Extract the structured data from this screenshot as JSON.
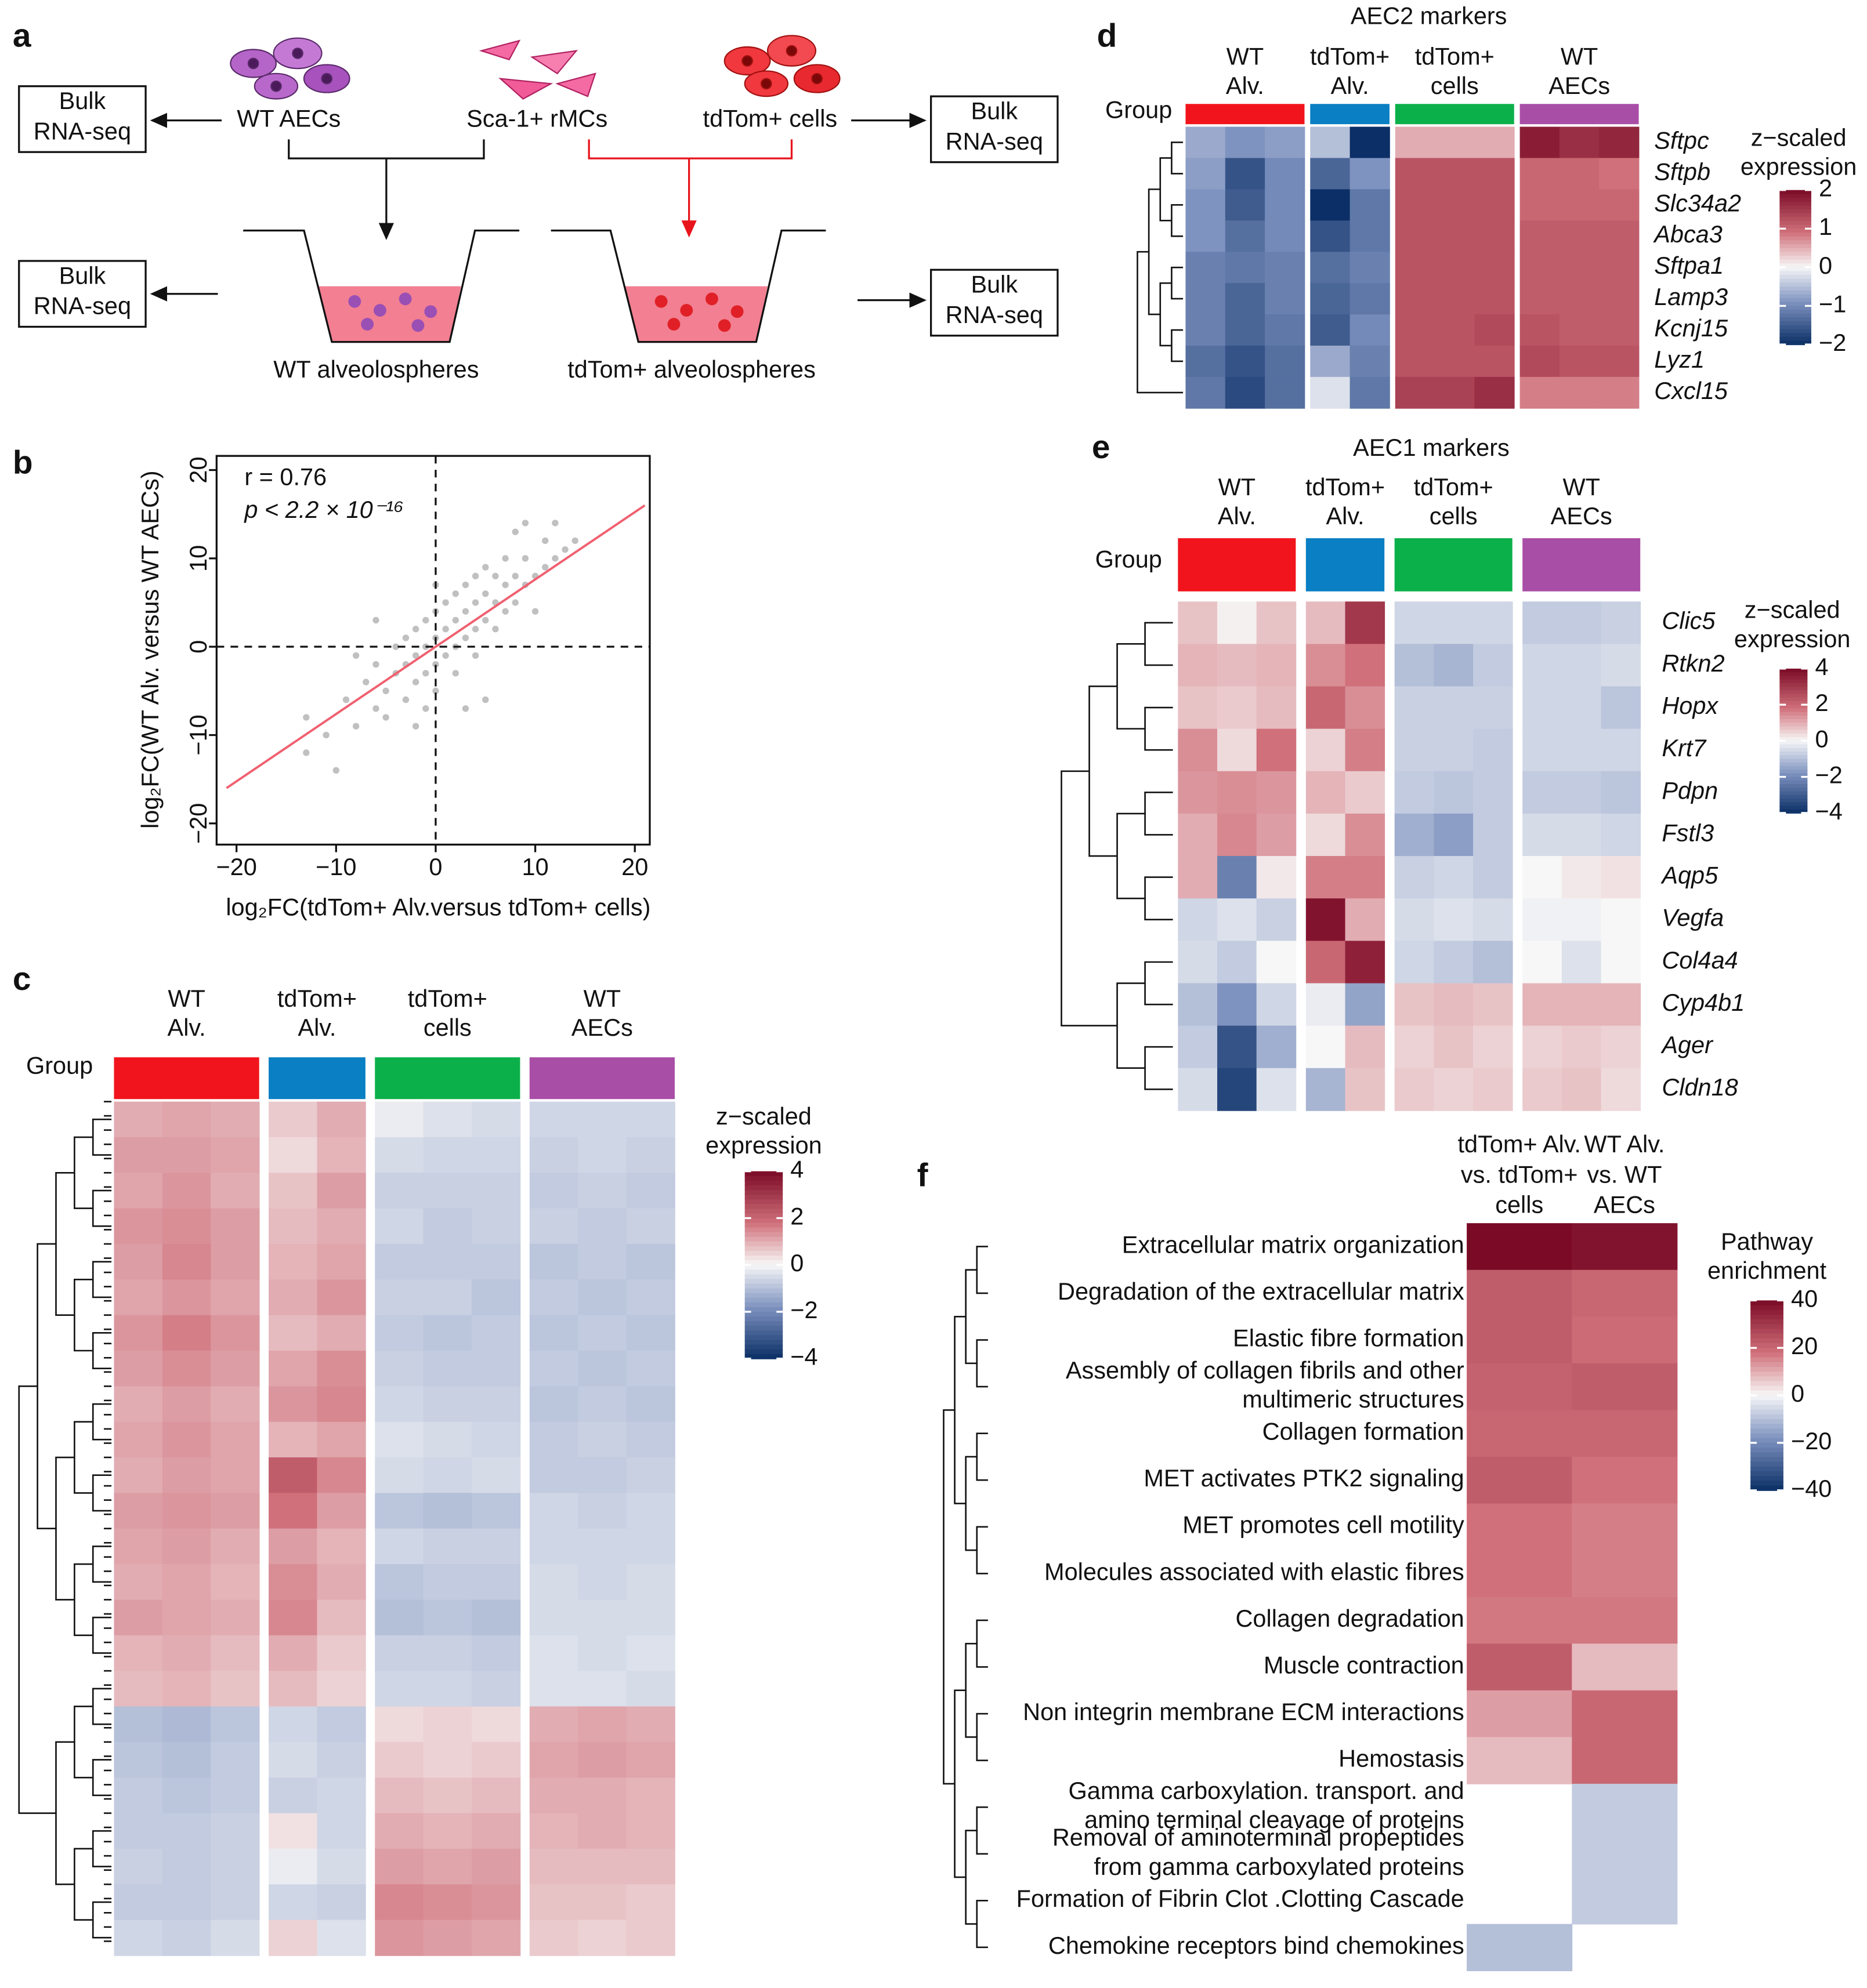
{
  "panel_labels": [
    "a",
    "b",
    "c",
    "d",
    "e",
    "f"
  ],
  "schematic": {
    "cells": [
      "WT AECs",
      "Sca-1+ rMCs",
      "tdTom+ cells"
    ],
    "bulk_boxes": [
      [
        "Bulk",
        "RNA-seq"
      ],
      [
        "Bulk",
        "RNA-seq"
      ],
      [
        "Bulk",
        "RNA-seq"
      ],
      [
        "Bulk",
        "RNA-seq"
      ]
    ],
    "wells": [
      "WT alveolospheres",
      "tdTom+ alveolospheres"
    ]
  },
  "chart_data": [
    {
      "type": "scatter",
      "annotations": [
        "r = 0.76",
        "p < 2.2 × 10⁻¹⁶"
      ],
      "xlabel": "log₂FC(tdTom+ Alv.versus tdTom+ cells)",
      "ylabel": "log₂FC(WT Alv. versus WT AECs)",
      "xlim": [
        -22,
        21.5
      ],
      "ylim": [
        -22.4,
        21.6
      ],
      "xticks": [
        {
          "value": -20,
          "label": "−20"
        },
        {
          "value": -10,
          "label": "−10"
        },
        0,
        10,
        20
      ],
      "yticks": [
        {
          "value": -20,
          "label": "−20"
        },
        {
          "value": -10,
          "label": "−10"
        },
        0,
        10,
        20
      ],
      "color": "#c0c0c0",
      "fit_color": "#f06070",
      "ref_lines": {
        "x": 0,
        "y": 0
      },
      "fit": {
        "x": [
          -21,
          21
        ],
        "y": [
          -16,
          16
        ]
      },
      "x": [
        -13,
        -11,
        -9,
        -8,
        -7,
        -6,
        -6,
        -5,
        -5,
        -4,
        -4,
        -3,
        -3,
        -3,
        -2,
        -2,
        -2,
        -1,
        -1,
        -1,
        0,
        0,
        0,
        0,
        1,
        1,
        1,
        2,
        2,
        2,
        2,
        3,
        3,
        3,
        4,
        4,
        4,
        4,
        5,
        5,
        5,
        6,
        6,
        6,
        7,
        7,
        7,
        8,
        8,
        9,
        9,
        10,
        11,
        11,
        12,
        13,
        14,
        -8,
        -10,
        -13,
        5,
        8,
        -2,
        3,
        10,
        -6,
        9,
        12,
        0,
        -1
      ],
      "y": [
        -12,
        -10,
        -6,
        -9,
        -4,
        -7,
        -2,
        -5,
        -8,
        -3,
        0,
        -6,
        -2,
        1,
        -4,
        -1,
        2,
        -3,
        0,
        3,
        -5,
        -2,
        1,
        4,
        -1,
        2,
        5,
        -3,
        0,
        3,
        6,
        1,
        4,
        7,
        -1,
        2,
        5,
        8,
        3,
        6,
        9,
        2,
        5,
        8,
        4,
        7,
        10,
        5,
        8,
        7,
        10,
        8,
        9,
        12,
        10,
        11,
        12,
        -1,
        -14,
        -8,
        -6,
        13,
        -9,
        -7,
        4,
        3,
        14,
        14,
        7,
        -7
      ]
    },
    {
      "type": "heatmap",
      "group_label": "Group",
      "legend_title": [
        "z−scaled",
        "expression"
      ],
      "clim": [
        -4,
        4
      ],
      "cticks": [
        {
          "value": -4,
          "label": "−4"
        },
        {
          "value": -2,
          "label": "−2"
        },
        0,
        2,
        4
      ],
      "groups": [
        {
          "label": [
            "WT",
            "Alv."
          ],
          "color": "#f2141c",
          "columns": 3
        },
        {
          "label": [
            "tdTom+",
            "Alv."
          ],
          "color": "#0a7fc3",
          "columns": 2
        },
        {
          "label": [
            "tdTom+",
            "cells"
          ],
          "color": "#0cb04a",
          "columns": 3
        },
        {
          "label": [
            "WT",
            "AECs"
          ],
          "color": "#a94ea6",
          "columns": 3
        }
      ],
      "values": [
        [
          1.0,
          1.1,
          1.0,
          0.6,
          1.0,
          -0.2,
          -0.4,
          -0.5,
          -0.6,
          -0.6,
          -0.6
        ],
        [
          1.2,
          1.2,
          1.1,
          0.4,
          0.9,
          -0.5,
          -0.6,
          -0.6,
          -0.7,
          -0.6,
          -0.7
        ],
        [
          1.1,
          1.3,
          1.0,
          0.7,
          1.2,
          -0.7,
          -0.7,
          -0.7,
          -0.8,
          -0.7,
          -0.8
        ],
        [
          1.3,
          1.4,
          1.2,
          0.8,
          1.0,
          -0.6,
          -0.8,
          -0.7,
          -0.7,
          -0.8,
          -0.7
        ],
        [
          1.2,
          1.5,
          1.2,
          0.9,
          1.1,
          -0.8,
          -0.8,
          -0.8,
          -0.9,
          -0.8,
          -0.9
        ],
        [
          1.1,
          1.3,
          1.1,
          1.0,
          1.3,
          -0.7,
          -0.7,
          -0.9,
          -0.8,
          -0.9,
          -0.8
        ],
        [
          1.3,
          1.6,
          1.3,
          0.8,
          1.0,
          -0.8,
          -0.9,
          -0.8,
          -0.9,
          -0.8,
          -0.9
        ],
        [
          1.2,
          1.4,
          1.2,
          1.1,
          1.4,
          -0.7,
          -0.8,
          -0.8,
          -0.8,
          -0.9,
          -0.8
        ],
        [
          1.0,
          1.2,
          1.0,
          1.3,
          1.5,
          -0.6,
          -0.7,
          -0.7,
          -0.9,
          -0.8,
          -0.9
        ],
        [
          1.1,
          1.3,
          1.1,
          0.9,
          1.1,
          -0.4,
          -0.5,
          -0.6,
          -0.8,
          -0.7,
          -0.8
        ],
        [
          1.0,
          1.2,
          1.1,
          2.2,
          1.5,
          -0.5,
          -0.6,
          -0.5,
          -0.8,
          -0.8,
          -0.7
        ],
        [
          1.2,
          1.3,
          1.2,
          1.8,
          1.2,
          -0.9,
          -1.0,
          -0.9,
          -0.6,
          -0.7,
          -0.6
        ],
        [
          1.1,
          1.2,
          1.0,
          1.2,
          0.9,
          -0.6,
          -0.7,
          -0.7,
          -0.6,
          -0.6,
          -0.6
        ],
        [
          1.0,
          1.1,
          0.9,
          1.4,
          1.0,
          -0.9,
          -0.8,
          -0.8,
          -0.5,
          -0.6,
          -0.5
        ],
        [
          1.2,
          1.1,
          1.0,
          1.5,
          0.8,
          -1.0,
          -0.9,
          -1.0,
          -0.5,
          -0.5,
          -0.5
        ],
        [
          0.9,
          1.0,
          0.8,
          1.0,
          0.6,
          -0.7,
          -0.7,
          -0.8,
          -0.4,
          -0.5,
          -0.4
        ],
        [
          0.8,
          0.9,
          0.7,
          0.8,
          0.5,
          -0.6,
          -0.6,
          -0.7,
          -0.4,
          -0.4,
          -0.5
        ],
        [
          -1.0,
          -1.1,
          -0.9,
          -0.6,
          -0.8,
          0.4,
          0.5,
          0.4,
          1.0,
          1.1,
          1.0
        ],
        [
          -0.9,
          -1.0,
          -0.8,
          -0.5,
          -0.7,
          0.6,
          0.5,
          0.6,
          1.1,
          1.2,
          1.1
        ],
        [
          -0.8,
          -0.9,
          -0.8,
          -0.7,
          -0.6,
          0.8,
          0.7,
          0.8,
          1.0,
          1.0,
          0.9
        ],
        [
          -0.8,
          -0.8,
          -0.7,
          0.3,
          -0.6,
          1.0,
          0.9,
          1.0,
          0.9,
          1.0,
          0.9
        ],
        [
          -0.7,
          -0.8,
          -0.7,
          -0.2,
          -0.5,
          1.2,
          1.1,
          1.2,
          0.8,
          0.8,
          0.8
        ],
        [
          -0.8,
          -0.8,
          -0.7,
          -0.6,
          -0.7,
          1.5,
          1.4,
          1.3,
          0.7,
          0.7,
          0.6
        ],
        [
          -0.6,
          -0.7,
          -0.5,
          0.5,
          -0.4,
          1.3,
          1.2,
          1.1,
          0.6,
          0.5,
          0.6
        ]
      ]
    },
    {
      "type": "heatmap",
      "title": "AEC2 markers",
      "group_label": "Group",
      "legend_title": [
        "z−scaled",
        "expression"
      ],
      "clim": [
        -2,
        2
      ],
      "cticks": [
        {
          "value": -2,
          "label": "−2"
        },
        {
          "value": -1,
          "label": "−1"
        },
        0,
        1,
        2
      ],
      "groups": [
        {
          "label": [
            "WT",
            "Alv."
          ],
          "color": "#f2141c",
          "columns": 3
        },
        {
          "label": [
            "tdTom+",
            "Alv."
          ],
          "color": "#0a7fc3",
          "columns": 2
        },
        {
          "label": [
            "tdTom+",
            "cells"
          ],
          "color": "#0cb04a",
          "columns": 3
        },
        {
          "label": [
            "WT",
            "AECs"
          ],
          "color": "#a94ea6",
          "columns": 3
        }
      ],
      "row_labels": [
        "Sftpc",
        "Sftpb",
        "Slc34a2",
        "Abca3",
        "Sftpa1",
        "Lamp3",
        "Kcnj15",
        "Lyz1",
        "Cxcl15"
      ],
      "values": [
        [
          -0.7,
          -0.9,
          -0.8,
          -0.5,
          -2.0,
          0.5,
          0.5,
          0.5,
          1.8,
          1.6,
          1.7
        ],
        [
          -0.8,
          -1.6,
          -1.0,
          -1.4,
          -0.9,
          1.2,
          1.2,
          1.2,
          1.0,
          1.0,
          0.9
        ],
        [
          -0.9,
          -1.5,
          -1.0,
          -2.0,
          -1.2,
          1.2,
          1.2,
          1.2,
          1.0,
          1.0,
          1.0
        ],
        [
          -0.9,
          -1.3,
          -1.0,
          -1.6,
          -1.2,
          1.2,
          1.2,
          1.2,
          1.1,
          1.1,
          1.1
        ],
        [
          -1.1,
          -1.2,
          -1.1,
          -1.3,
          -1.1,
          1.2,
          1.2,
          1.2,
          1.1,
          1.1,
          1.1
        ],
        [
          -1.1,
          -1.4,
          -1.1,
          -1.4,
          -1.2,
          1.2,
          1.2,
          1.2,
          1.1,
          1.1,
          1.1
        ],
        [
          -1.1,
          -1.4,
          -1.2,
          -1.5,
          -1.0,
          1.2,
          1.2,
          1.3,
          1.2,
          1.1,
          1.1
        ],
        [
          -1.3,
          -1.6,
          -1.3,
          -0.7,
          -1.1,
          1.2,
          1.2,
          1.2,
          1.3,
          1.2,
          1.2
        ],
        [
          -1.2,
          -1.7,
          -1.3,
          -0.2,
          -1.2,
          1.4,
          1.4,
          1.6,
          0.8,
          0.8,
          0.8
        ]
      ]
    },
    {
      "type": "heatmap",
      "title": "AEC1 markers",
      "group_label": "Group",
      "legend_title": [
        "z−scaled",
        "expression"
      ],
      "clim": [
        -4,
        4
      ],
      "cticks": [
        {
          "value": -4,
          "label": "−4"
        },
        {
          "value": -2,
          "label": "−2"
        },
        0,
        2,
        4
      ],
      "groups": [
        {
          "label": [
            "WT",
            "Alv."
          ],
          "color": "#f2141c",
          "columns": 3
        },
        {
          "label": [
            "tdTom+",
            "Alv."
          ],
          "color": "#0a7fc3",
          "columns": 2
        },
        {
          "label": [
            "tdTom+",
            "cells"
          ],
          "color": "#0cb04a",
          "columns": 3
        },
        {
          "label": [
            "WT",
            "AECs"
          ],
          "color": "#a94ea6",
          "columns": 3
        }
      ],
      "row_labels": [
        "Clic5",
        "Rtkn2",
        "Hopx",
        "Krt7",
        "Pdpn",
        "Fstl3",
        "Aqp5",
        "Vegfa",
        "Col4a4",
        "Cyp4b1",
        "Ager",
        "Cldn18"
      ],
      "values": [
        [
          0.7,
          0.1,
          0.7,
          0.8,
          3.0,
          -0.6,
          -0.6,
          -0.6,
          -0.8,
          -0.8,
          -0.7
        ],
        [
          0.9,
          0.8,
          0.9,
          1.4,
          1.8,
          -1.0,
          -1.2,
          -0.8,
          -0.6,
          -0.6,
          -0.5
        ],
        [
          0.7,
          0.6,
          0.8,
          2.0,
          1.4,
          -0.7,
          -0.7,
          -0.7,
          -0.6,
          -0.6,
          -0.9
        ],
        [
          1.4,
          0.4,
          1.8,
          0.5,
          1.6,
          -0.7,
          -0.7,
          -0.8,
          -0.6,
          -0.6,
          -0.6
        ],
        [
          1.3,
          1.4,
          1.3,
          0.9,
          0.6,
          -0.8,
          -0.9,
          -0.8,
          -0.8,
          -0.8,
          -0.9
        ],
        [
          1.0,
          1.5,
          1.2,
          0.4,
          1.4,
          -1.3,
          -1.6,
          -0.8,
          -0.5,
          -0.5,
          -0.6
        ],
        [
          1.0,
          -2.2,
          0.2,
          1.6,
          1.6,
          -0.7,
          -0.6,
          -0.8,
          0.0,
          0.2,
          0.3
        ],
        [
          -0.6,
          -0.4,
          -0.7,
          3.8,
          1.0,
          -0.5,
          -0.4,
          -0.5,
          -0.1,
          -0.1,
          0.0
        ],
        [
          -0.5,
          -0.8,
          0.0,
          2.0,
          3.5,
          -0.6,
          -0.8,
          -1.0,
          0.0,
          -0.4,
          0.0
        ],
        [
          -1.0,
          -1.8,
          -0.6,
          -0.2,
          -1.5,
          0.7,
          0.8,
          0.7,
          0.9,
          0.9,
          0.9
        ],
        [
          -0.8,
          -3.2,
          -1.3,
          0.0,
          0.8,
          0.5,
          0.7,
          0.5,
          0.5,
          0.6,
          0.5
        ],
        [
          -0.5,
          -3.5,
          -0.4,
          -1.2,
          0.7,
          0.6,
          0.5,
          0.6,
          0.6,
          0.7,
          0.4
        ]
      ]
    },
    {
      "type": "heatmap",
      "legend_title": [
        "Pathway",
        "enrichment"
      ],
      "clim": [
        -40,
        40
      ],
      "cticks": [
        {
          "value": -40,
          "label": "−40"
        },
        {
          "value": -20,
          "label": "−20"
        },
        0,
        20,
        40
      ],
      "column_labels": [
        [
          "tdTom+ Alv.",
          "vs. tdTom+",
          "cells"
        ],
        [
          "WT Alv.",
          "vs. WT",
          "AECs"
        ]
      ],
      "row_labels": [
        [
          "Extracellular matrix organization"
        ],
        [
          "Degradation of the extracellular matrix"
        ],
        [
          "Elastic fibre formation"
        ],
        [
          "Assembly of collagen fibrils and other",
          "multimeric structures"
        ],
        [
          "Collagen formation"
        ],
        [
          "MET activates PTK2 signaling"
        ],
        [
          "MET promotes cell motility"
        ],
        [
          "Molecules associated with elastic fibres"
        ],
        [
          "Collagen degradation"
        ],
        [
          "Muscle contraction"
        ],
        [
          "Non integrin membrane ECM interactions"
        ],
        [
          "Hemostasis"
        ],
        [
          "Gamma carboxylation. transport. and",
          "amino terminal cleavage of proteins"
        ],
        [
          "Removal of aminoterminal propeptides",
          "from gamma carboxylated proteins"
        ],
        [
          "Formation of Fibrin Clot .Clotting Cascade"
        ],
        [
          "Chemokine receptors bind chemokines"
        ]
      ],
      "values": [
        [
          42,
          38
        ],
        [
          22,
          20
        ],
        [
          22,
          19
        ],
        [
          21,
          22
        ],
        [
          20,
          20
        ],
        [
          22,
          18
        ],
        [
          18,
          16
        ],
        [
          18,
          16
        ],
        [
          17,
          17
        ],
        [
          22,
          8
        ],
        [
          12,
          20
        ],
        [
          8,
          20
        ],
        [
          null,
          -8
        ],
        [
          null,
          -8
        ],
        [
          null,
          -8
        ],
        [
          -10,
          null
        ]
      ]
    }
  ]
}
